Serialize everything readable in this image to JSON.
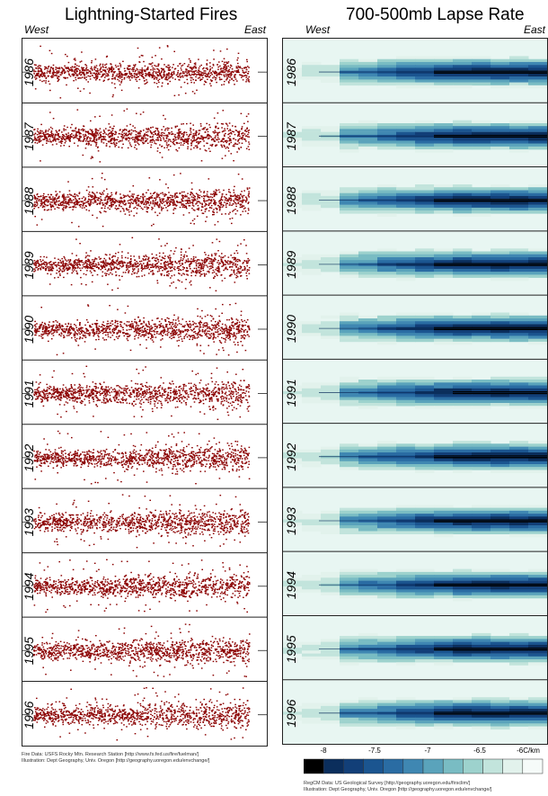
{
  "left": {
    "title": "Lightning-Started Fires",
    "west": "West",
    "east": "East",
    "credit_line1": "Fire Data:  USFS Rocky Mtn. Research Station [http://www.fs.fed.us/fire/fuelman/]",
    "credit_line2": "Illustration:  Dept Geography, Univ. Oregon [http://geography.uoregon.edu/envchange/]"
  },
  "right": {
    "title": "700-500mb Lapse Rate",
    "west": "West",
    "east": "East",
    "credit_line1": "RegCM Data:  US Geological Survey [http://geography.uoregon.edu/firsclim/]",
    "credit_line2": "Illustration:  Dept Geography, Univ. Oregon [http://geography.uoregon.edu/envchange/]"
  },
  "colors": {
    "fire": "#8b0000",
    "lapse_dark": "#08306b",
    "lapse_light": "#e8f6f2",
    "frame": "#222222"
  },
  "chart_data": [
    {
      "type": "scatter",
      "title": "Lightning-Started Fires",
      "xlabel": "",
      "ylabel": "",
      "x_axis_labels": [
        "West",
        "East"
      ],
      "years": [
        "1986",
        "1987",
        "1988",
        "1989",
        "1990",
        "1991",
        "1992",
        "1993",
        "1994",
        "1995",
        "1996"
      ],
      "series_color": "#8b0000"
    },
    {
      "type": "heatmap",
      "title": "700-500mb Lapse Rate",
      "x_axis_labels": [
        "West",
        "East"
      ],
      "years": [
        "1986",
        "1987",
        "1988",
        "1989",
        "1990",
        "1991",
        "1992",
        "1993",
        "1994",
        "1995",
        "1996"
      ],
      "colorbar": {
        "tick_labels": [
          "-8",
          "-7.5",
          "-7",
          "-6.5",
          "-6C/km"
        ],
        "colors": [
          "#000000",
          "#0b2e5c",
          "#123f78",
          "#1b5590",
          "#2a6ca3",
          "#3f87b2",
          "#5aa3bb",
          "#79bcc3",
          "#9dd2cd",
          "#c2e4dc",
          "#e2f2ec",
          "#f6fbf9"
        ]
      }
    }
  ]
}
